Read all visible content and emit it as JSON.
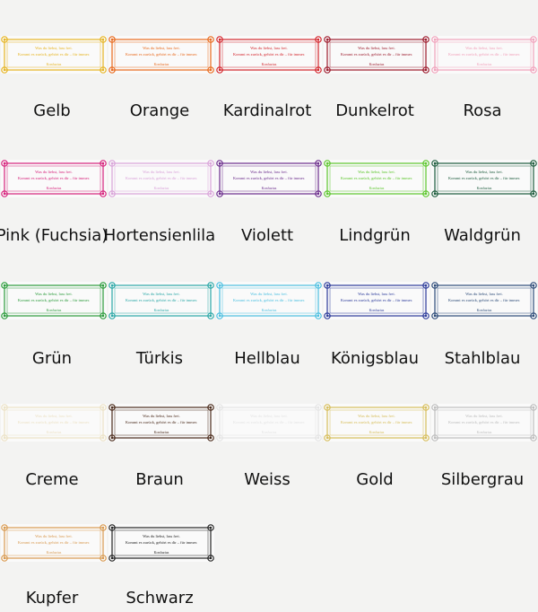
{
  "banner": {
    "lines": [
      "Was du liebst, lass frei.",
      "Kommt es zurück, gehört es dir – für immer.",
      "Konfuzius"
    ]
  },
  "swatches": [
    {
      "name": "Gelb",
      "color": "#e6b422"
    },
    {
      "name": "Orange",
      "color": "#e8691c"
    },
    {
      "name": "Kardinalrot",
      "color": "#d3242b"
    },
    {
      "name": "Dunkelrot",
      "color": "#9c1a2c"
    },
    {
      "name": "Rosa",
      "color": "#f1a2bb"
    },
    {
      "name": "Pink (Fuchsia)",
      "color": "#d6217b"
    },
    {
      "name": "Hortensienlila",
      "color": "#d9a3d9"
    },
    {
      "name": "Violett",
      "color": "#6b2c8c"
    },
    {
      "name": "Lindgrün",
      "color": "#5cc62c"
    },
    {
      "name": "Waldgrün",
      "color": "#1c5b3c"
    },
    {
      "name": "Grün",
      "color": "#2b9b3b"
    },
    {
      "name": "Türkis",
      "color": "#2aa7a6"
    },
    {
      "name": "Hellblau",
      "color": "#4bbfe0"
    },
    {
      "name": "Königsblau",
      "color": "#2b3a9a"
    },
    {
      "name": "Stahlblau",
      "color": "#2c4b78"
    },
    {
      "name": "Creme",
      "color": "#ece2c6"
    },
    {
      "name": "Braun",
      "color": "#4a2a1a"
    },
    {
      "name": "Weiss",
      "color": "#e4e4e4"
    },
    {
      "name": "Gold",
      "color": "#d6bd5a"
    },
    {
      "name": "Silbergrau",
      "color": "#bdbdbd"
    },
    {
      "name": "Kupfer",
      "color": "#d8994f"
    },
    {
      "name": "Schwarz",
      "color": "#222222"
    }
  ]
}
